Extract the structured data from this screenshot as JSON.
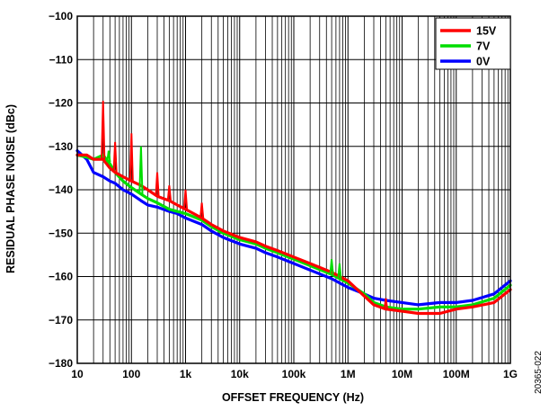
{
  "figure_id": "20365-022",
  "chart_data": {
    "type": "line",
    "title": "",
    "xlabel": "OFFSET FREQUENCY (Hz)",
    "ylabel": "RESIDUAL PHASE NOISE (dBc)",
    "x_scale": "log",
    "xlim": [
      10,
      1000000000
    ],
    "ylim": [
      -180,
      -100
    ],
    "x_ticks": [
      10,
      100,
      1000,
      10000,
      100000,
      1000000,
      10000000,
      100000000,
      1000000000
    ],
    "x_tick_labels": [
      "10",
      "100",
      "1k",
      "10k",
      "100k",
      "1M",
      "10M",
      "100M",
      "1G"
    ],
    "y_ticks": [
      -180,
      -170,
      -160,
      -150,
      -140,
      -130,
      -120,
      -110,
      -100
    ],
    "y_tick_labels": [
      "−180",
      "−170",
      "−160",
      "−150",
      "−140",
      "−130",
      "−120",
      "−110",
      "−100"
    ],
    "grid": true,
    "legend_position": "top-right",
    "series": [
      {
        "name": "0V",
        "color": "#0000ff",
        "x": [
          10,
          15,
          20,
          30,
          40,
          50,
          70,
          100,
          150,
          200,
          300,
          500,
          700,
          1000,
          2000,
          3000,
          5000,
          10000,
          20000,
          30000,
          50000,
          100000,
          200000,
          500000,
          1000000,
          2000000,
          3000000,
          5000000,
          10000000,
          20000000,
          50000000,
          100000000,
          200000000,
          500000000,
          1000000000
        ],
        "y": [
          -131,
          -133,
          -136,
          -137,
          -138,
          -138.5,
          -140,
          -141,
          -142.5,
          -143.5,
          -144,
          -145,
          -145.5,
          -146.5,
          -148,
          -149.5,
          -151,
          -152.5,
          -153.5,
          -154.5,
          -155.5,
          -157,
          -158.5,
          -160.5,
          -162.5,
          -164,
          -165,
          -165.5,
          -166,
          -166.5,
          -166,
          -166,
          -165.5,
          -164,
          -161
        ]
      },
      {
        "name": "7V",
        "color": "#00dd00",
        "x": [
          10,
          15,
          20,
          30,
          40,
          50,
          70,
          100,
          150,
          200,
          300,
          500,
          700,
          1000,
          2000,
          3000,
          5000,
          10000,
          20000,
          30000,
          50000,
          100000,
          200000,
          500000,
          1000000,
          2000000,
          3000000,
          5000000,
          10000000,
          20000000,
          50000000,
          100000000,
          200000000,
          500000000,
          1000000000
        ],
        "y": [
          -132,
          -132.5,
          -133,
          -132,
          -134,
          -136,
          -138,
          -139.5,
          -141,
          -142,
          -143,
          -144.5,
          -145,
          -145.5,
          -147,
          -148.5,
          -150,
          -151.5,
          -152.5,
          -153.5,
          -154.5,
          -156,
          -157.5,
          -159.5,
          -161.5,
          -164,
          -166,
          -167,
          -167.5,
          -167.5,
          -167,
          -167,
          -166.5,
          -165,
          -162
        ]
      },
      {
        "name": "15V",
        "color": "#ff0000",
        "x": [
          10,
          15,
          20,
          30,
          40,
          50,
          70,
          100,
          150,
          200,
          300,
          500,
          700,
          1000,
          2000,
          3000,
          5000,
          10000,
          20000,
          30000,
          50000,
          100000,
          200000,
          500000,
          1000000,
          2000000,
          3000000,
          5000000,
          10000000,
          20000000,
          50000000,
          100000000,
          200000000,
          500000000,
          1000000000
        ],
        "y": [
          -132,
          -132,
          -133,
          -133,
          -135,
          -136,
          -137,
          -138,
          -139,
          -140,
          -141.5,
          -142.5,
          -143.5,
          -144.5,
          -146.5,
          -148,
          -149.5,
          -151,
          -152,
          -153,
          -154,
          -155.5,
          -157,
          -159,
          -161,
          -164.5,
          -166.5,
          -167.5,
          -168,
          -168.5,
          -168.5,
          -167.5,
          -167,
          -166,
          -163
        ]
      }
    ],
    "spurs": [
      {
        "series": "15V",
        "x": 30,
        "y": -119.5
      },
      {
        "series": "7V",
        "x": 38,
        "y": -131
      },
      {
        "series": "15V",
        "x": 50,
        "y": -129
      },
      {
        "series": "15V",
        "x": 100,
        "y": -127
      },
      {
        "series": "7V",
        "x": 150,
        "y": -130
      },
      {
        "series": "15V",
        "x": 300,
        "y": -136
      },
      {
        "series": "15V",
        "x": 500,
        "y": -139
      },
      {
        "series": "15V",
        "x": 1000,
        "y": -140
      },
      {
        "series": "15V",
        "x": 2000,
        "y": -143
      },
      {
        "series": "7V",
        "x": 500000,
        "y": -156
      },
      {
        "series": "7V",
        "x": 700000,
        "y": -157
      },
      {
        "series": "15V",
        "x": 5000000,
        "y": -165
      }
    ]
  }
}
